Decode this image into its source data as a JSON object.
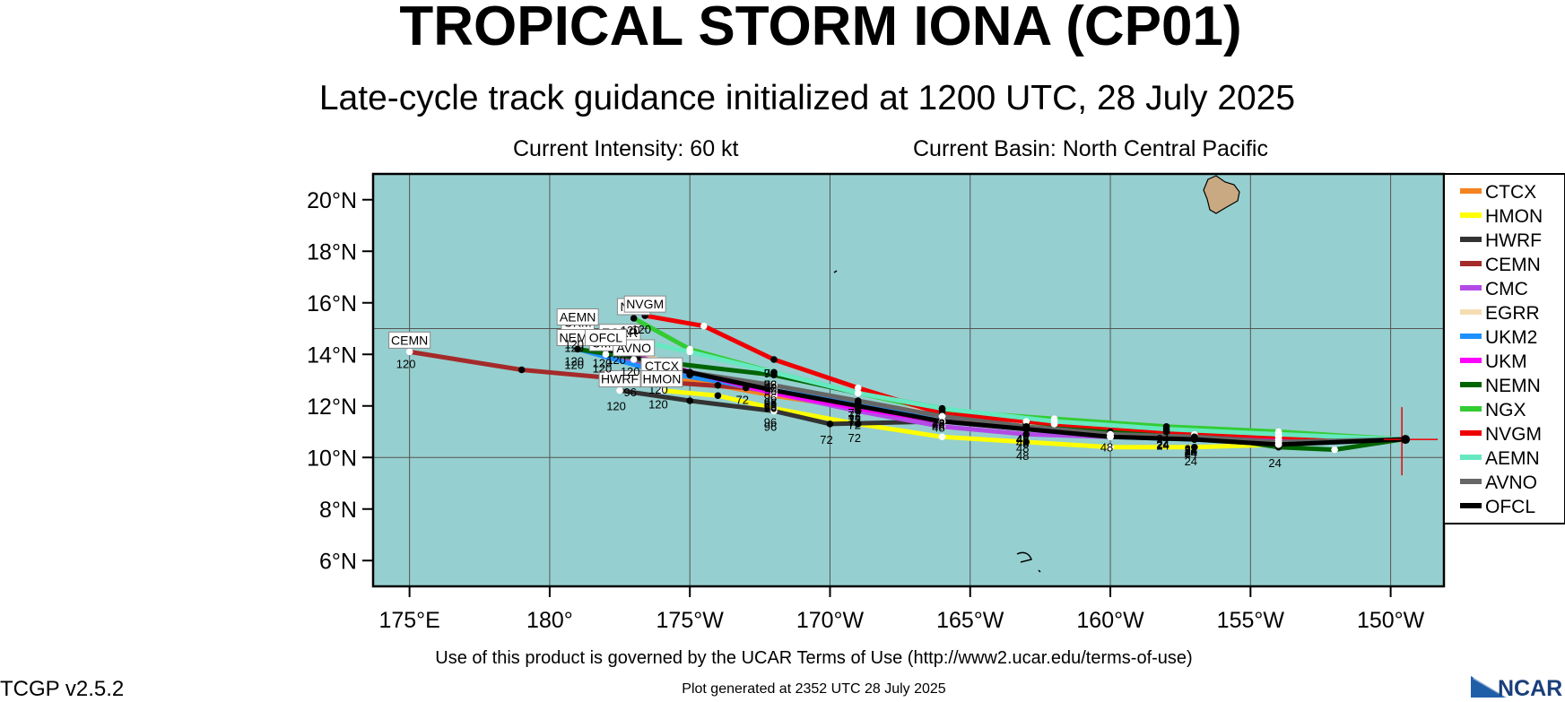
{
  "title": "TROPICAL STORM IONA (CP01)",
  "subtitle": "Late-cycle track guidance initialized at 1200 UTC, 28 July 2025",
  "current_intensity": "Current Intensity: 60 kt",
  "current_basin": "Current Basin: North Central Pacific",
  "terms": "Use of this product is governed by the UCAR Terms of Use (http://www2.ucar.edu/terms-of-use)",
  "generated": "Plot generated at 2352 UTC   28 July 2025",
  "version": "TCGP v2.5.2",
  "logo_text": "NCAR",
  "colors": {
    "ocean": "#96cfcf",
    "land": "#c8a982",
    "frame": "#000000",
    "grid": "#555555"
  },
  "lat_labels": [
    "20°N",
    "18°N",
    "16°N",
    "14°N",
    "12°N",
    "10°N",
    "8°N",
    "6°N"
  ],
  "lon_labels": [
    "175°E",
    "180°",
    "175°W",
    "170°W",
    "165°W",
    "160°W",
    "155°W",
    "150°W"
  ],
  "legend": [
    {
      "name": "CTCX",
      "color": "#f4821f"
    },
    {
      "name": "HMON",
      "color": "#ffff00"
    },
    {
      "name": "HWRF",
      "color": "#333333"
    },
    {
      "name": "CEMN",
      "color": "#a52a2a"
    },
    {
      "name": "CMC",
      "color": "#b44ae6"
    },
    {
      "name": "EGRR",
      "color": "#f5deb3"
    },
    {
      "name": "UKM2",
      "color": "#1e90ff"
    },
    {
      "name": "UKM",
      "color": "#ff00ff"
    },
    {
      "name": "NEMN",
      "color": "#006400"
    },
    {
      "name": "NGX",
      "color": "#33cc33"
    },
    {
      "name": "NVGM",
      "color": "#ee0000"
    },
    {
      "name": "AEMN",
      "color": "#66e8c0"
    },
    {
      "name": "AVNO",
      "color": "#666666"
    },
    {
      "name": "OFCL",
      "color": "#000000"
    }
  ],
  "chart_data": {
    "type": "map",
    "projection": "lat-lon",
    "lat_range": [
      5,
      21
    ],
    "lon_range": [
      173.7,
      211.9
    ],
    "grid": true,
    "legend_placement": "right",
    "current_position": {
      "lat": 10.7,
      "lon": 210.4
    },
    "series": [
      {
        "name": "CTCX",
        "color": "#f4821f",
        "points": [
          [
            210.4,
            10.7
          ],
          [
            206,
            10.7
          ],
          [
            203,
            10.8
          ],
          [
            200,
            11.0
          ],
          [
            197,
            11.2
          ],
          [
            194,
            11.4
          ],
          [
            191,
            11.9
          ],
          [
            188,
            12.4
          ],
          [
            186,
            12.8
          ],
          [
            184,
            13.1
          ]
        ],
        "end_label": "CTCX",
        "hour_labels": [
          "24",
          "48",
          "72",
          "96",
          "120"
        ]
      },
      {
        "name": "HMON",
        "color": "#ffff00",
        "points": [
          [
            210.4,
            10.7
          ],
          [
            206,
            10.5
          ],
          [
            203,
            10.4
          ],
          [
            200,
            10.4
          ],
          [
            197,
            10.6
          ],
          [
            194,
            10.8
          ],
          [
            191,
            11.3
          ],
          [
            188,
            11.9
          ],
          [
            186,
            12.4
          ],
          [
            184,
            12.6
          ]
        ],
        "end_label": "HMON",
        "hour_labels": [
          "24",
          "48",
          "72",
          "96",
          "120"
        ]
      },
      {
        "name": "HWRF",
        "color": "#333333",
        "points": [
          [
            210.4,
            10.7
          ],
          [
            206,
            10.6
          ],
          [
            203,
            10.8
          ],
          [
            200,
            10.9
          ],
          [
            197,
            11.3
          ],
          [
            194,
            11.4
          ],
          [
            190,
            11.3
          ],
          [
            188,
            11.8
          ],
          [
            185,
            12.2
          ],
          [
            182.5,
            12.6
          ]
        ],
        "end_label": "HWRF",
        "hour_labels": [
          "24",
          "48",
          "72",
          "96",
          "120"
        ]
      },
      {
        "name": "CEMN",
        "color": "#a52a2a",
        "points": [
          [
            210.4,
            10.7
          ],
          [
            206,
            10.8
          ],
          [
            202,
            11.0
          ],
          [
            198,
            11.3
          ],
          [
            194,
            11.7
          ],
          [
            191,
            12.1
          ],
          [
            187,
            12.7
          ],
          [
            183,
            13.0
          ],
          [
            179,
            13.4
          ],
          [
            175,
            14.1
          ]
        ],
        "end_label": "CEMN",
        "hour_labels": [
          "24",
          "48",
          "72",
          "96",
          "120"
        ]
      },
      {
        "name": "CMC",
        "color": "#b44ae6",
        "points": [
          [
            210.4,
            10.7
          ],
          [
            206,
            10.7
          ],
          [
            203,
            10.8
          ],
          [
            200,
            10.8
          ],
          [
            197,
            10.9
          ],
          [
            194,
            11.2
          ],
          [
            191,
            11.8
          ],
          [
            188,
            12.5
          ],
          [
            185,
            13.2
          ],
          [
            182,
            14.0
          ]
        ],
        "end_label": "CMC",
        "hour_labels": [
          "24",
          "48",
          "72",
          "96",
          "120"
        ]
      },
      {
        "name": "EGRR",
        "color": "#f5deb3",
        "points": [
          [
            210.4,
            10.7
          ],
          [
            206,
            10.7
          ],
          [
            203,
            10.9
          ],
          [
            200,
            11.0
          ],
          [
            197,
            11.3
          ],
          [
            194,
            11.7
          ],
          [
            191,
            12.1
          ],
          [
            188,
            12.6
          ],
          [
            185,
            13.3
          ],
          [
            182.5,
            14.4
          ]
        ],
        "end_label": "EGRR",
        "hour_labels": [
          "24",
          "48",
          "72",
          "96",
          "120"
        ]
      },
      {
        "name": "UKM2",
        "color": "#1e90ff",
        "points": [
          [
            210.4,
            10.7
          ],
          [
            206,
            10.5
          ],
          [
            203,
            10.7
          ],
          [
            200,
            10.8
          ],
          [
            197,
            11.2
          ],
          [
            194,
            11.6
          ],
          [
            191,
            12.1
          ],
          [
            188,
            12.6
          ],
          [
            184,
            13.3
          ],
          [
            181,
            14.2
          ]
        ],
        "end_label": "UKM2",
        "hour_labels": [
          "24",
          "48",
          "72",
          "96",
          "120"
        ]
      },
      {
        "name": "UKM",
        "color": "#ff00ff",
        "points": [
          [
            210.4,
            10.7
          ],
          [
            206,
            10.7
          ],
          [
            203,
            10.8
          ],
          [
            200,
            10.9
          ],
          [
            197,
            11.1
          ],
          [
            194,
            11.4
          ],
          [
            191,
            11.9
          ],
          [
            188,
            12.5
          ],
          [
            184,
            13.6
          ],
          [
            181,
            14.8
          ]
        ],
        "end_label": "UKM",
        "hour_labels": [
          "24",
          "48",
          "72",
          "96",
          "120"
        ]
      },
      {
        "name": "NEMN",
        "color": "#006400",
        "points": [
          [
            210.4,
            10.7
          ],
          [
            208,
            10.3
          ],
          [
            206,
            10.4
          ],
          [
            203,
            10.9
          ],
          [
            200,
            11.0
          ],
          [
            197,
            11.4
          ],
          [
            194,
            11.9
          ],
          [
            191,
            12.5
          ],
          [
            188,
            13.2
          ],
          [
            184,
            13.7
          ],
          [
            181,
            14.2
          ]
        ],
        "end_label": "NEMN",
        "hour_labels": [
          "24",
          "48",
          "72",
          "96",
          "120"
        ]
      },
      {
        "name": "NGX",
        "color": "#33cc33",
        "points": [
          [
            210.4,
            10.7
          ],
          [
            206,
            11.0
          ],
          [
            202,
            11.2
          ],
          [
            198,
            11.5
          ],
          [
            194,
            11.8
          ],
          [
            191,
            12.5
          ],
          [
            188,
            13.3
          ],
          [
            185,
            14.2
          ],
          [
            183,
            15.4
          ]
        ],
        "end_label": "NGX",
        "hour_labels": [
          "24",
          "48",
          "72",
          "96",
          "120"
        ]
      },
      {
        "name": "NVGM",
        "color": "#ee0000",
        "points": [
          [
            210.4,
            10.7
          ],
          [
            206,
            10.8
          ],
          [
            202,
            11.0
          ],
          [
            198,
            11.3
          ],
          [
            194,
            11.7
          ],
          [
            191,
            12.7
          ],
          [
            188,
            13.8
          ],
          [
            185.5,
            15.1
          ],
          [
            183.4,
            15.5
          ]
        ],
        "end_label": "NVGM",
        "hour_labels": [
          "24",
          "48",
          "72",
          "96",
          "120"
        ]
      },
      {
        "name": "AEMN",
        "color": "#66e8c0",
        "points": [
          [
            210.4,
            10.7
          ],
          [
            206,
            10.9
          ],
          [
            202,
            11.1
          ],
          [
            198,
            11.4
          ],
          [
            194,
            11.9
          ],
          [
            191,
            12.5
          ],
          [
            188,
            13.3
          ],
          [
            185,
            14.1
          ],
          [
            181,
            15.0
          ]
        ],
        "end_label": "AEMN",
        "hour_labels": [
          "24",
          "48",
          "72",
          "96",
          "120"
        ]
      },
      {
        "name": "AVNO",
        "color": "#666666",
        "points": [
          [
            210.4,
            10.7
          ],
          [
            206,
            10.6
          ],
          [
            203,
            10.8
          ],
          [
            200,
            10.9
          ],
          [
            197,
            11.2
          ],
          [
            194,
            11.6
          ],
          [
            191,
            12.2
          ],
          [
            188,
            12.8
          ],
          [
            185,
            13.3
          ],
          [
            183,
            13.8
          ]
        ],
        "end_label": "AVNO",
        "hour_labels": [
          "24",
          "48",
          "72",
          "96",
          "120"
        ]
      },
      {
        "name": "OFCL",
        "color": "#000000",
        "points": [
          [
            210.4,
            10.7
          ],
          [
            206,
            10.5
          ],
          [
            203,
            10.7
          ],
          [
            200,
            10.8
          ],
          [
            197,
            11.1
          ],
          [
            194,
            11.4
          ],
          [
            191,
            12.0
          ],
          [
            188,
            12.6
          ],
          [
            185,
            13.3
          ],
          [
            182,
            14.2
          ]
        ],
        "end_label": "OFCL",
        "hour_labels": [
          "24",
          "48",
          "72",
          "96",
          "120"
        ]
      }
    ]
  }
}
